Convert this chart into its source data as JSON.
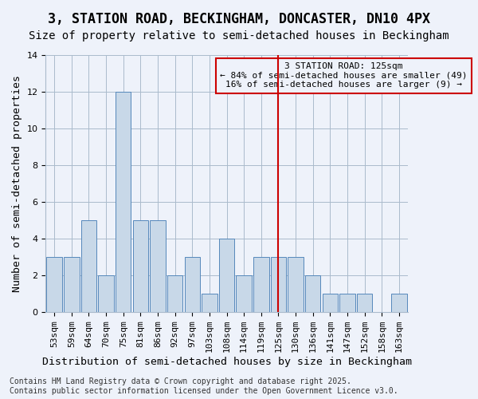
{
  "title": "3, STATION ROAD, BECKINGHAM, DONCASTER, DN10 4PX",
  "subtitle": "Size of property relative to semi-detached houses in Beckingham",
  "xlabel": "Distribution of semi-detached houses by size in Beckingham",
  "ylabel": "Number of semi-detached properties",
  "categories": [
    "53sqm",
    "59sqm",
    "64sqm",
    "70sqm",
    "75sqm",
    "81sqm",
    "86sqm",
    "92sqm",
    "97sqm",
    "103sqm",
    "108sqm",
    "114sqm",
    "119sqm",
    "125sqm",
    "130sqm",
    "136sqm",
    "141sqm",
    "147sqm",
    "152sqm",
    "158sqm",
    "163sqm"
  ],
  "values": [
    3,
    3,
    5,
    2,
    12,
    5,
    5,
    2,
    3,
    1,
    4,
    2,
    3,
    3,
    3,
    2,
    1,
    1,
    1,
    0,
    1
  ],
  "bar_color": "#c8d8e8",
  "bar_edge_color": "#5588bb",
  "vline_x": 13,
  "vline_color": "#cc0000",
  "ylim": [
    0,
    14
  ],
  "yticks": [
    0,
    2,
    4,
    6,
    8,
    10,
    12,
    14
  ],
  "annotation_title": "3 STATION ROAD: 125sqm",
  "annotation_line1": "← 84% of semi-detached houses are smaller (49)",
  "annotation_line2": "16% of semi-detached houses are larger (9) →",
  "annotation_box_color": "#cc0000",
  "background_color": "#eef2fa",
  "footnote1": "Contains HM Land Registry data © Crown copyright and database right 2025.",
  "footnote2": "Contains public sector information licensed under the Open Government Licence v3.0.",
  "title_fontsize": 12,
  "subtitle_fontsize": 10,
  "axis_label_fontsize": 9.5,
  "tick_fontsize": 8,
  "annotation_fontsize": 8,
  "footnote_fontsize": 7
}
